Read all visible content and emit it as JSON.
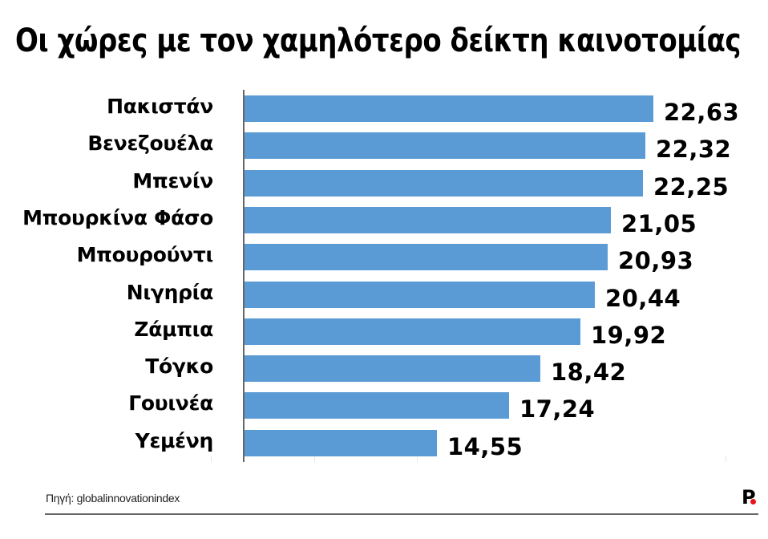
{
  "header": {
    "title": "Οι χώρες με τον χαμηλότερο δείκτη καινοτομίας"
  },
  "colors": {
    "bar": "#5b9bd5",
    "axis": "#666666",
    "text": "#000000",
    "logo_dot": "#e8141b"
  },
  "chart_data": {
    "type": "bar",
    "orientation": "horizontal",
    "title": "Οι χώρες με τον χαμηλότερο δείκτη καινοτομίας",
    "xlabel": "",
    "ylabel": "",
    "categories": [
      "Πακιστάν",
      "Βενεζουέλα",
      "Μπενίν",
      "Μπουρκίνα Φάσο",
      "Μπουρούντι",
      "Νιγηρία",
      "Ζάμπια",
      "Τόγκο",
      "Γουινέα",
      "Υεμένη"
    ],
    "values": [
      22.63,
      22.32,
      22.25,
      21.05,
      20.93,
      20.44,
      19.92,
      18.42,
      17.24,
      14.55
    ],
    "value_labels": [
      "22,63",
      "22,32",
      "22,25",
      "21,05",
      "20,93",
      "20,44",
      "19,92",
      "18,42",
      "17,24",
      "14,55"
    ],
    "grid": false,
    "legend": null
  },
  "footer": {
    "source": "Πηγή: globalinnovationindex",
    "logo": "P"
  }
}
